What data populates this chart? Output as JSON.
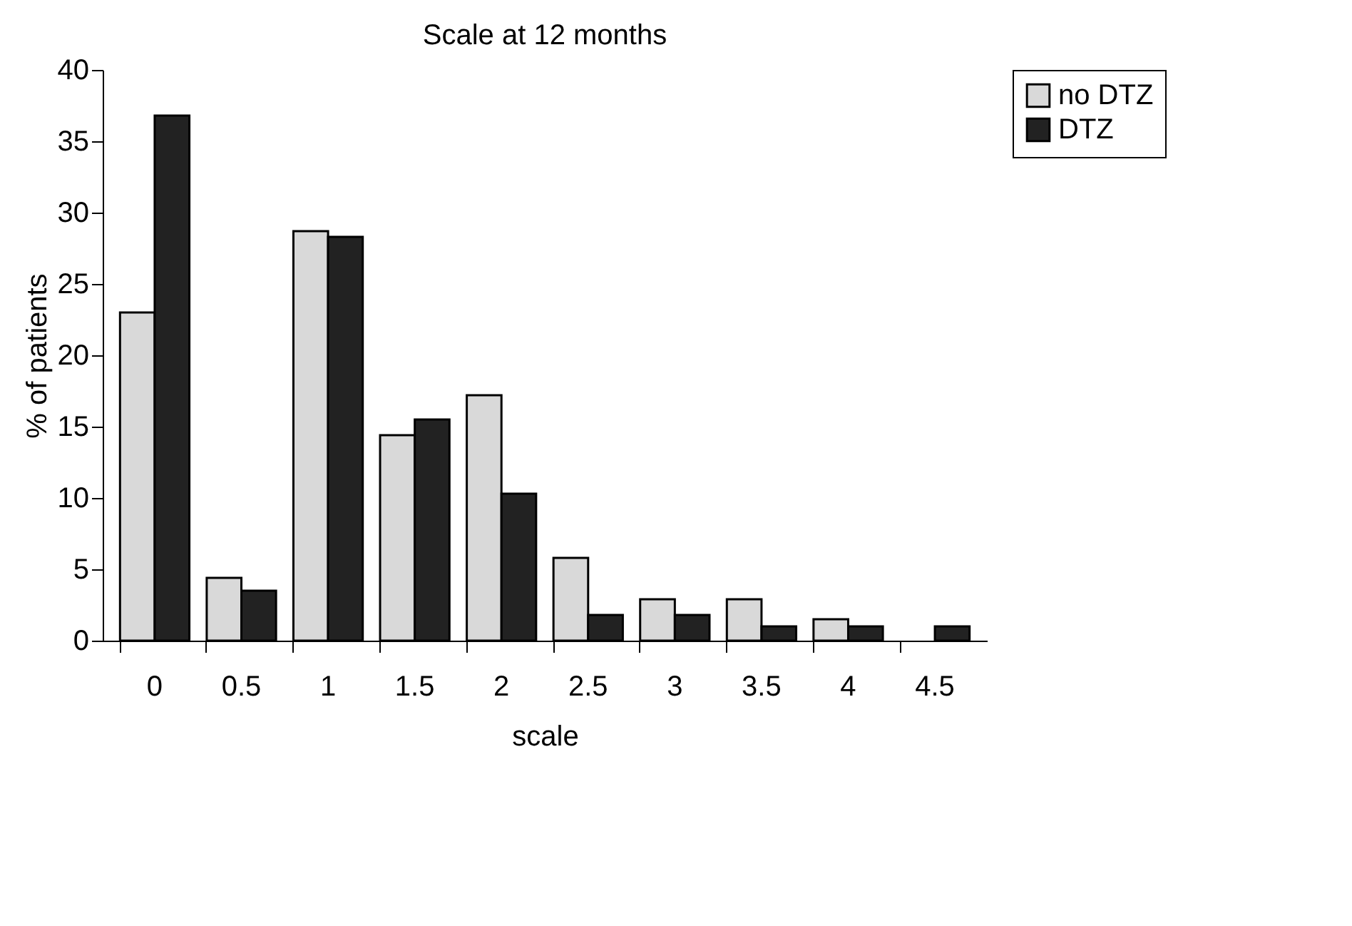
{
  "chart_data": {
    "type": "bar",
    "title": "Scale at 12 months",
    "xlabel": "scale",
    "ylabel": "% of patients",
    "categories": [
      "0",
      "0.5",
      "1",
      "1.5",
      "2",
      "2.5",
      "3",
      "3.5",
      "4",
      "4.5"
    ],
    "series": [
      {
        "name": "no DTZ",
        "color": "#d9d9d9",
        "values": [
          23,
          4.4,
          28.7,
          14.4,
          17.2,
          5.8,
          2.9,
          2.9,
          1.5,
          null
        ]
      },
      {
        "name": "DTZ",
        "color": "#222222",
        "values": [
          36.8,
          3.5,
          28.3,
          15.5,
          10.3,
          1.8,
          1.8,
          1,
          1,
          1
        ]
      }
    ],
    "ylim": [
      0,
      40
    ],
    "yticks": [
      0,
      5,
      10,
      15,
      20,
      25,
      30,
      35,
      40
    ],
    "grid": false,
    "legend": "right"
  }
}
